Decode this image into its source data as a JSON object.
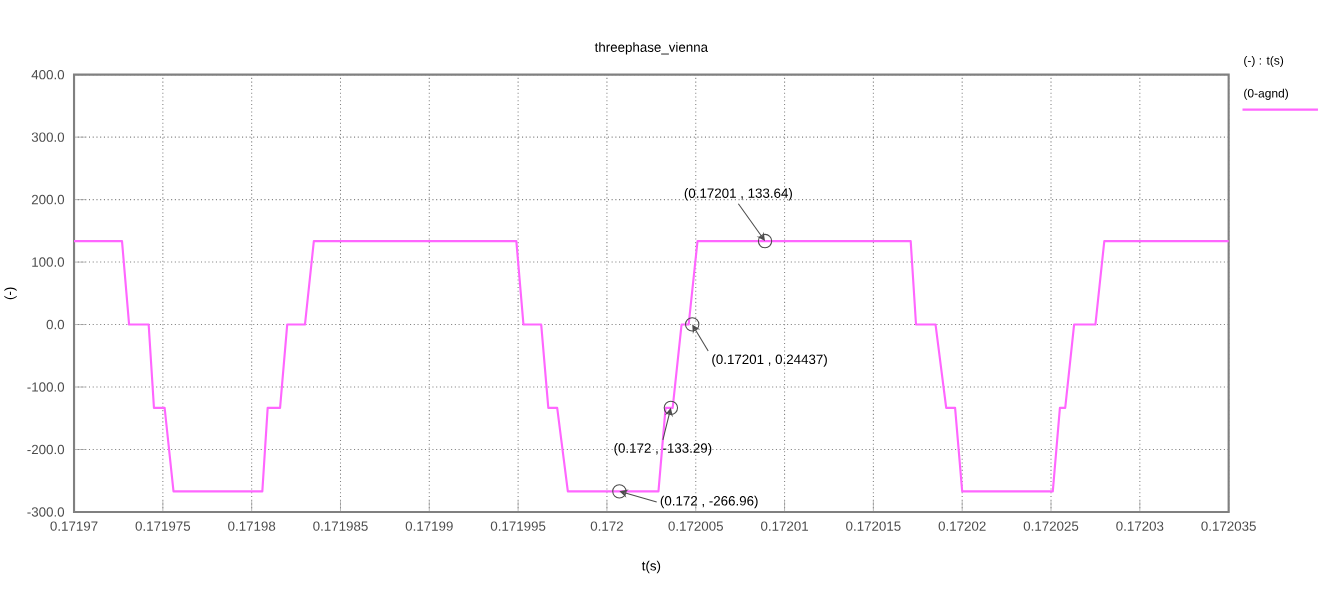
{
  "chart_data": {
    "type": "line",
    "title": "threephase_vienna",
    "xlabel": "t(s)",
    "ylabel": "(-)",
    "legend_title": "(-) : t(s)",
    "x": [
      0.17197,
      0.1719727,
      0.1719731,
      0.1719742,
      0.1719745,
      0.1719751,
      0.1719756,
      0.1719806,
      0.1719809,
      0.1719816,
      0.171982,
      0.171983,
      0.1719835,
      0.1719949,
      0.1719953,
      0.1719963,
      0.1719967,
      0.1719972,
      0.1719978,
      0.1720029,
      0.1720033,
      0.1720037,
      0.1720042,
      0.1720046,
      0.1720051,
      0.1720171,
      0.1720174,
      0.1720185,
      0.1720191,
      0.1720196,
      0.17202,
      0.1720251,
      0.1720255,
      0.1720258,
      0.1720263,
      0.1720275,
      0.172028,
      0.172035
    ],
    "series": [
      {
        "name": "(0-agnd)",
        "color": "#ff66ff",
        "values": [
          133.64,
          133.64,
          0,
          0,
          -133.29,
          -133.29,
          -266.96,
          -266.96,
          -133.29,
          -133.29,
          0,
          0,
          133.64,
          133.64,
          0,
          0,
          -133.29,
          -133.29,
          -266.96,
          -266.96,
          -133.29,
          -133.29,
          0,
          0,
          133.64,
          133.64,
          0,
          0,
          -133.29,
          -133.29,
          -266.96,
          -266.96,
          -133.29,
          -133.29,
          0,
          0,
          133.64,
          133.64
        ]
      }
    ],
    "xlim": [
      0.17197,
      0.172035
    ],
    "xticks": [
      0.17197,
      0.171975,
      0.17198,
      0.171985,
      0.17199,
      0.171995,
      0.172,
      0.172005,
      0.17201,
      0.172015,
      0.17202,
      0.172025,
      0.17203,
      0.172035
    ],
    "ylim": [
      -300,
      400
    ],
    "yticks": [
      {
        "value": -300,
        "label": "-300.0"
      },
      {
        "value": -200,
        "label": "-200.0"
      },
      {
        "value": -100,
        "label": "-100.0"
      },
      {
        "value": 0,
        "label": "0.0"
      },
      {
        "value": 100,
        "label": "100.0"
      },
      {
        "value": 200,
        "label": "200.0"
      },
      {
        "value": 300,
        "label": "300.0"
      },
      {
        "value": 400,
        "label": "400.0"
      }
    ],
    "grid": true,
    "legend": "top right",
    "marker": "none",
    "line_style": "solid",
    "annotations": [
      {
        "text": "(0.172 , -266.96)",
        "x": 0.1720007,
        "y": -266.96
      },
      {
        "text": "(0.172 , -133.29)",
        "x": 0.1720036,
        "y": -133.29
      },
      {
        "text": "(0.17201 , 0.24437)",
        "x": 0.1720048,
        "y": 0.24437
      },
      {
        "text": "(0.17201 , 133.64)",
        "x": 0.1720089,
        "y": 133.64
      }
    ]
  }
}
